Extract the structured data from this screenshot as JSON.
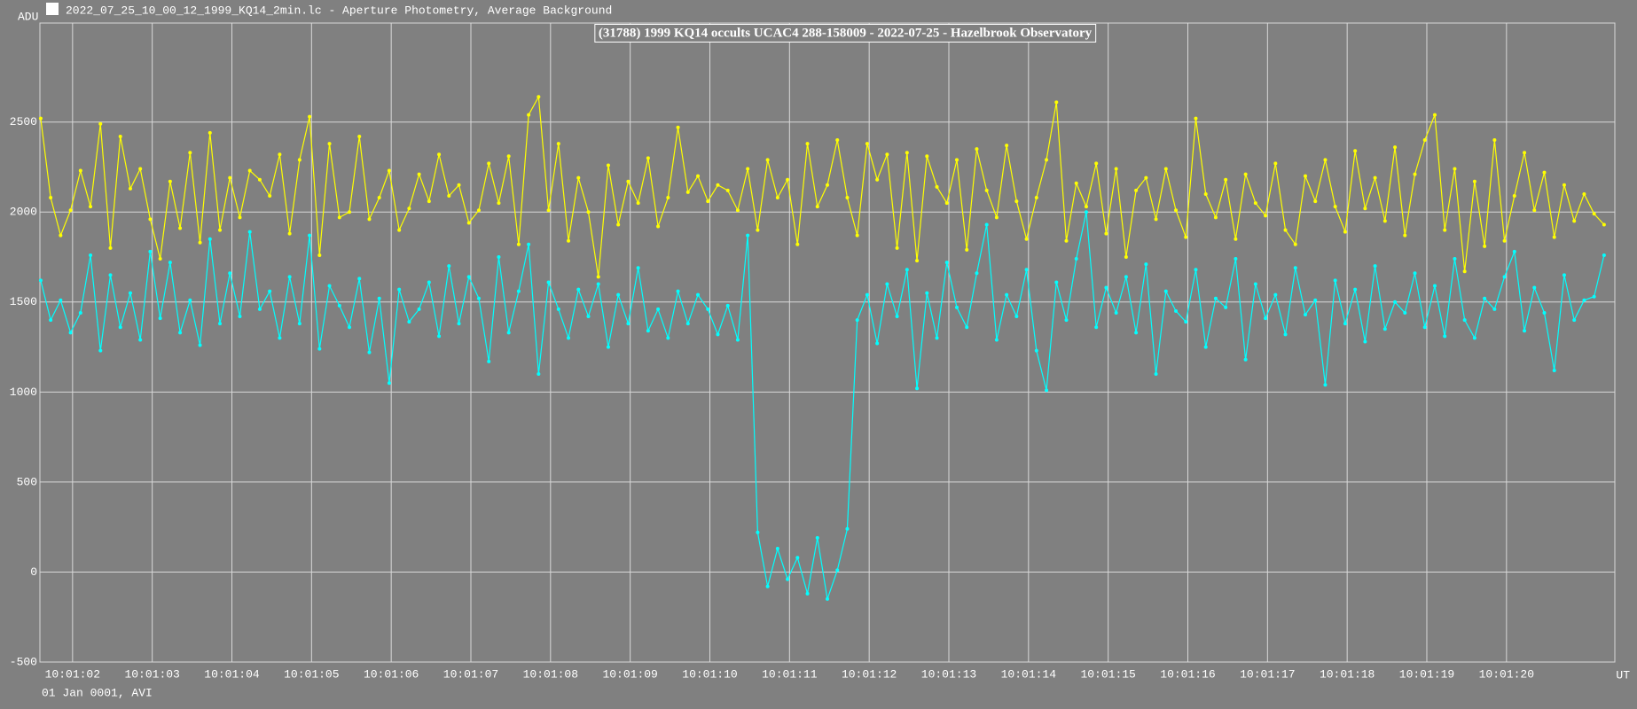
{
  "window_title": "2022_07_25_10_00_12_1999_KQ14_2min.lc - Aperture Photometry, Average Background",
  "chart_data": {
    "type": "line",
    "title": "(31788) 1999 KQ14 occults UCAC4 288-158009 - 2022-07-25 - Hazelbrook Observatory",
    "y_label": "ADU",
    "x_label": "UT",
    "footer": "01 Jan 0001, AVI",
    "xlim": [
      1.59,
      21.36
    ],
    "ylim": [
      -500,
      3050
    ],
    "xticks": [
      {
        "value": 2,
        "label": "10:01:02"
      },
      {
        "value": 3,
        "label": "10:01:03"
      },
      {
        "value": 4,
        "label": "10:01:04"
      },
      {
        "value": 5,
        "label": "10:01:05"
      },
      {
        "value": 6,
        "label": "10:01:06"
      },
      {
        "value": 7,
        "label": "10:01:07"
      },
      {
        "value": 8,
        "label": "10:01:08"
      },
      {
        "value": 9,
        "label": "10:01:09"
      },
      {
        "value": 10,
        "label": "10:01:10"
      },
      {
        "value": 11,
        "label": "10:01:11"
      },
      {
        "value": 12,
        "label": "10:01:12"
      },
      {
        "value": 13,
        "label": "10:01:13"
      },
      {
        "value": 14,
        "label": "10:01:14"
      },
      {
        "value": 15,
        "label": "10:01:15"
      },
      {
        "value": 16,
        "label": "10:01:16"
      },
      {
        "value": 17,
        "label": "10:01:17"
      },
      {
        "value": 18,
        "label": "10:01:18"
      },
      {
        "value": 19,
        "label": "10:01:19"
      },
      {
        "value": 20,
        "label": "10:01:20"
      }
    ],
    "yticks": [
      -500,
      0,
      500,
      1000,
      1500,
      2000,
      2500
    ],
    "grid": true,
    "x": [
      1.6,
      1.725,
      1.85,
      1.975,
      2.1,
      2.225,
      2.35,
      2.475,
      2.6,
      2.725,
      2.85,
      2.975,
      3.1,
      3.225,
      3.35,
      3.475,
      3.6,
      3.725,
      3.85,
      3.975,
      4.1,
      4.225,
      4.35,
      4.475,
      4.6,
      4.725,
      4.85,
      4.975,
      5.1,
      5.225,
      5.35,
      5.475,
      5.6,
      5.725,
      5.85,
      5.975,
      6.1,
      6.225,
      6.35,
      6.475,
      6.6,
      6.725,
      6.85,
      6.975,
      7.1,
      7.225,
      7.35,
      7.475,
      7.6,
      7.725,
      7.85,
      7.975,
      8.1,
      8.225,
      8.35,
      8.475,
      8.6,
      8.725,
      8.85,
      8.975,
      9.1,
      9.225,
      9.35,
      9.475,
      9.6,
      9.725,
      9.85,
      9.975,
      10.1,
      10.225,
      10.35,
      10.475,
      10.6,
      10.725,
      10.85,
      10.975,
      11.1,
      11.225,
      11.35,
      11.475,
      11.6,
      11.725,
      11.85,
      11.975,
      12.1,
      12.225,
      12.35,
      12.475,
      12.6,
      12.725,
      12.85,
      12.975,
      13.1,
      13.225,
      13.35,
      13.475,
      13.6,
      13.725,
      13.85,
      13.975,
      14.1,
      14.225,
      14.35,
      14.475,
      14.6,
      14.725,
      14.85,
      14.975,
      15.1,
      15.225,
      15.35,
      15.475,
      15.6,
      15.725,
      15.85,
      15.975,
      16.1,
      16.225,
      16.35,
      16.475,
      16.6,
      16.725,
      16.85,
      16.975,
      17.1,
      17.225,
      17.35,
      17.475,
      17.6,
      17.725,
      17.85,
      17.975,
      18.1,
      18.225,
      18.35,
      18.475,
      18.6,
      18.725,
      18.85,
      18.975,
      19.1,
      19.225,
      19.35,
      19.475,
      19.6,
      19.725,
      19.85,
      19.975,
      20.1,
      20.225,
      20.35,
      20.475,
      20.6,
      20.725,
      20.85,
      20.975,
      21.1,
      21.225
    ],
    "series": [
      {
        "color": "#ffff00",
        "values": [
          2520,
          2080,
          1870,
          2010,
          2230,
          2030,
          2490,
          1800,
          2420,
          2130,
          2240,
          1960,
          1740,
          2170,
          1910,
          2330,
          1830,
          2440,
          1900,
          2190,
          1970,
          2230,
          2180,
          2090,
          2320,
          1880,
          2290,
          2530,
          1760,
          2380,
          1970,
          2000,
          2420,
          1960,
          2080,
          2230,
          1900,
          2020,
          2210,
          2060,
          2320,
          2090,
          2150,
          1940,
          2010,
          2270,
          2050,
          2310,
          1820,
          2540,
          2640,
          2010,
          2380,
          1840,
          2190,
          2000,
          1640,
          2260,
          1930,
          2170,
          2050,
          2300,
          1920,
          2080,
          2470,
          2110,
          2200,
          2060,
          2150,
          2120,
          2010,
          2240,
          1900,
          2290,
          2080,
          2180,
          1820,
          2380,
          2030,
          2150,
          2400,
          2080,
          1870,
          2380,
          2180,
          2320,
          1800,
          2330,
          1730,
          2310,
          2140,
          2050,
          2290,
          1790,
          2350,
          2120,
          1970,
          2370,
          2060,
          1850,
          2080,
          2290,
          2610,
          1840,
          2160,
          2030,
          2270,
          1880,
          2240,
          1750,
          2120,
          2190,
          1960,
          2240,
          2010,
          1860,
          2520,
          2100,
          1970,
          2180,
          1850,
          2210,
          2050,
          1980,
          2270,
          1900,
          1820,
          2200,
          2060,
          2290,
          2030,
          1890,
          2340,
          2020,
          2190,
          1950,
          2360,
          1870,
          2210,
          2400,
          2540,
          1900,
          2240,
          1670,
          2170,
          1810,
          2400,
          1840,
          2090,
          2330,
          2010,
          2220,
          1860,
          2150,
          1950,
          2100,
          1990,
          1930
        ]
      },
      {
        "color": "#00ffff",
        "values": [
          1620,
          1400,
          1510,
          1330,
          1440,
          1760,
          1230,
          1650,
          1360,
          1550,
          1290,
          1780,
          1410,
          1720,
          1330,
          1510,
          1260,
          1850,
          1380,
          1660,
          1420,
          1890,
          1460,
          1560,
          1300,
          1640,
          1380,
          1870,
          1240,
          1590,
          1480,
          1360,
          1630,
          1220,
          1520,
          1050,
          1570,
          1390,
          1460,
          1610,
          1310,
          1700,
          1380,
          1640,
          1520,
          1170,
          1750,
          1330,
          1560,
          1820,
          1100,
          1610,
          1460,
          1300,
          1570,
          1420,
          1600,
          1250,
          1540,
          1380,
          1690,
          1340,
          1460,
          1300,
          1560,
          1380,
          1540,
          1460,
          1320,
          1480,
          1290,
          1870,
          220,
          -80,
          130,
          -40,
          80,
          -120,
          190,
          -150,
          10,
          240,
          1400,
          1540,
          1270,
          1600,
          1420,
          1680,
          1020,
          1550,
          1300,
          1720,
          1470,
          1360,
          1660,
          1930,
          1290,
          1540,
          1420,
          1680,
          1230,
          1010,
          1610,
          1400,
          1740,
          2000,
          1360,
          1580,
          1440,
          1640,
          1330,
          1710,
          1100,
          1560,
          1450,
          1390,
          1680,
          1250,
          1520,
          1470,
          1740,
          1180,
          1600,
          1410,
          1540,
          1320,
          1690,
          1430,
          1510,
          1040,
          1620,
          1380,
          1570,
          1280,
          1700,
          1350,
          1500,
          1440,
          1660,
          1360,
          1590,
          1310,
          1740,
          1400,
          1300,
          1520,
          1460,
          1640,
          1780,
          1340,
          1580,
          1440,
          1120,
          1650,
          1400,
          1510,
          1530,
          1760
        ]
      }
    ]
  }
}
